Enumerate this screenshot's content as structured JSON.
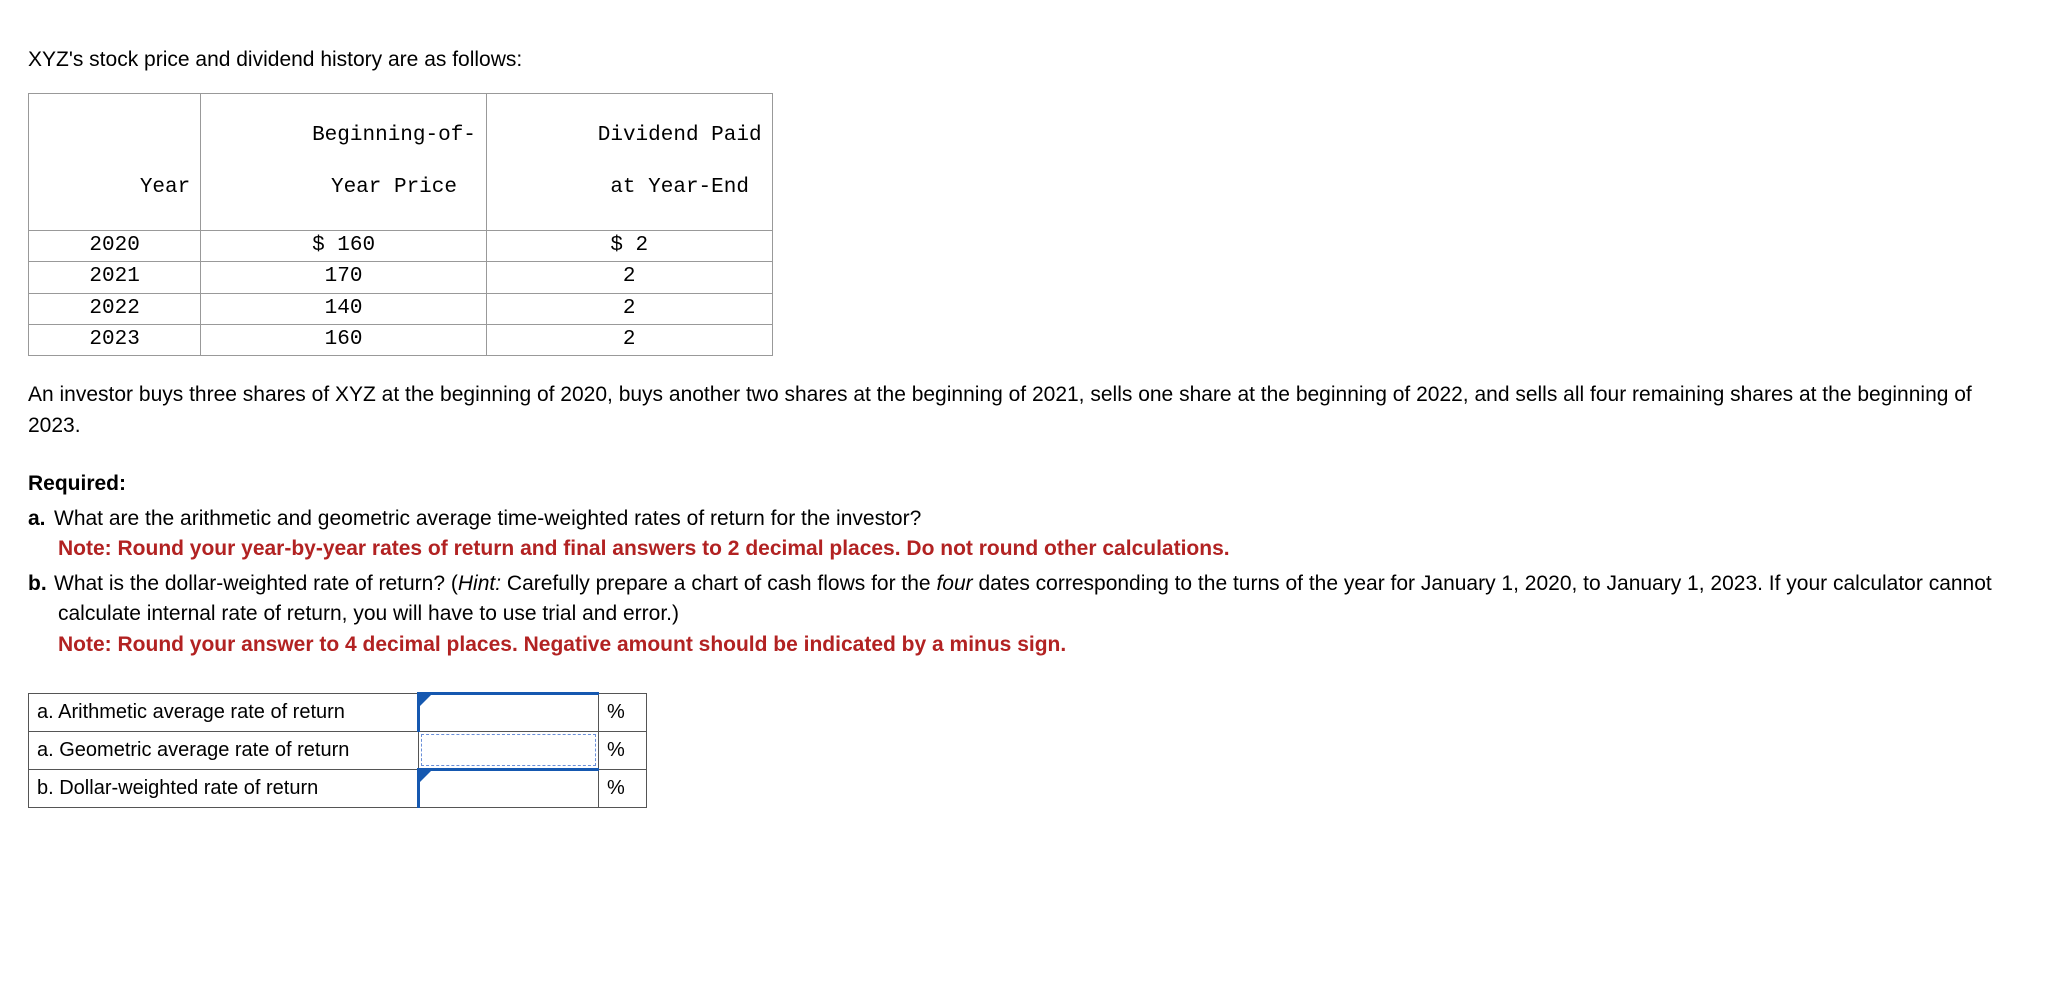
{
  "intro_text": "XYZ's stock price and dividend history are as follows:",
  "data_table": {
    "columns": [
      {
        "line1": "",
        "line2": "Year"
      },
      {
        "line1": "Beginning-of-",
        "line2": "Year Price"
      },
      {
        "line1": "Dividend Paid",
        "line2": "at Year-End"
      }
    ],
    "rows": [
      {
        "year": "2020",
        "price": "$ 160",
        "div": "$ 2"
      },
      {
        "year": "2021",
        "price": "170",
        "div": "2"
      },
      {
        "year": "2022",
        "price": "140",
        "div": "2"
      },
      {
        "year": "2023",
        "price": "160",
        "div": "2"
      }
    ],
    "font": "monospace",
    "border_color": "#999999",
    "text_color": "#000000"
  },
  "narrative_text": "An investor buys three shares of XYZ at the beginning of 2020, buys another two shares at the beginning of 2021, sells one share at the beginning of 2022, and sells all four remaining shares at the beginning of 2023.",
  "required": {
    "heading": "Required:",
    "items": [
      {
        "marker": "a.",
        "body": "What are the arithmetic and geometric average time-weighted rates of return for the investor?",
        "note": "Note: Round your year-by-year rates of return and final answers to 2 decimal places. Do not round other calculations."
      },
      {
        "marker": "b.",
        "body_pre": "What is the dollar-weighted rate of return? (",
        "hint_label": "Hint:",
        "body_post_1": " Carefully prepare a chart of cash flows for the ",
        "four_word": "four",
        "body_post_2": " dates corresponding to the turns of the year for January 1, 2020, to January 1, 2023. If your calculator cannot calculate internal rate of return, you will have to use trial and error.)",
        "note": "Note: Round your answer to 4 decimal places. Negative amount should be indicated by a minus sign."
      }
    ],
    "note_color": "#b22222"
  },
  "answer_table": {
    "rows": [
      {
        "label": "a. Arithmetic average rate of return",
        "value": "",
        "active": true,
        "dotted": false,
        "unit": "%"
      },
      {
        "label": "a. Geometric average rate of return",
        "value": "",
        "active": false,
        "dotted": true,
        "unit": "%"
      },
      {
        "label": "b. Dollar-weighted rate of return",
        "value": "",
        "active": true,
        "dotted": false,
        "unit": "%"
      }
    ],
    "border_color": "#555555",
    "active_border_color": "#1558b0",
    "dotted_border_color": "#6a8fd8"
  }
}
